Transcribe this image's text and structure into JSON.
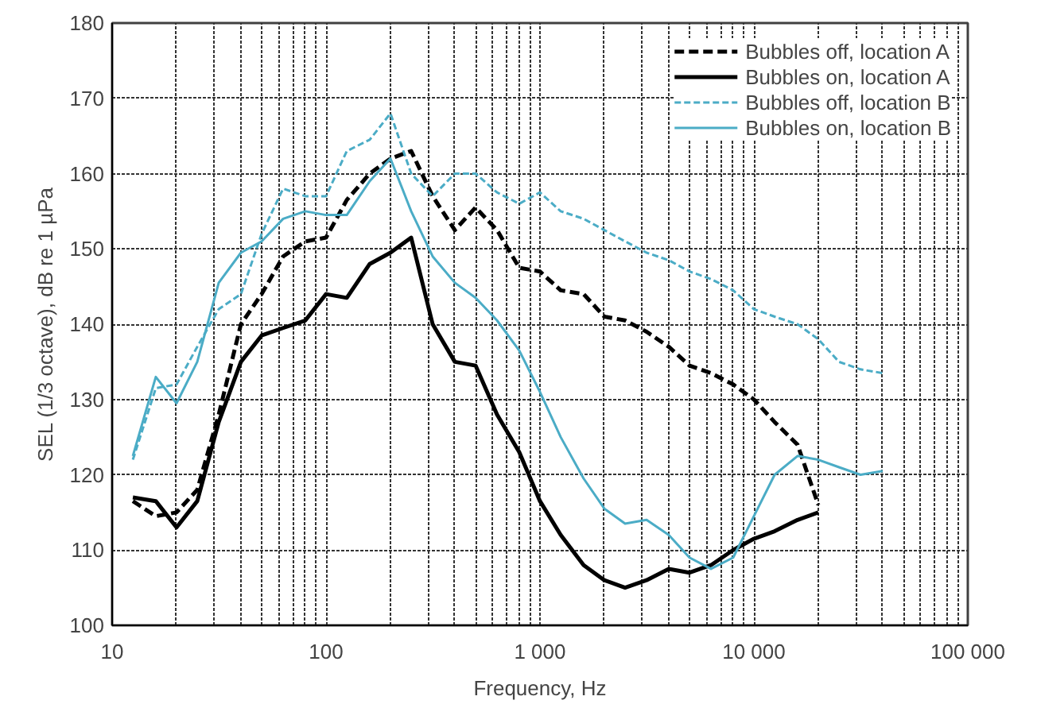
{
  "chart_data": {
    "type": "line",
    "xlabel": "Frequency, Hz",
    "ylabel": "SEL (1/3 octave), dB re 1 µPa",
    "x": [
      12.5,
      16,
      20,
      25,
      31.5,
      40,
      50,
      63,
      80,
      100,
      125,
      160,
      200,
      250,
      315,
      400,
      500,
      630,
      800,
      1000,
      1250,
      1600,
      2000,
      2500,
      3150,
      4000,
      5000,
      6300,
      8000,
      10000,
      12500,
      16000,
      20000,
      25000,
      31500,
      40000
    ],
    "series": [
      {
        "name": "Bubbles off, location A",
        "color": "#000000",
        "line_style": "dashed",
        "values": [
          116.5,
          114.5,
          115,
          118,
          128,
          140,
          144,
          149,
          151,
          151.5,
          156.5,
          160,
          162,
          163,
          157,
          152.5,
          155.5,
          152.5,
          147.5,
          147,
          144.5,
          144,
          141,
          140.5,
          139,
          137,
          134.5,
          133.5,
          132,
          130,
          127,
          124,
          116,
          null,
          null,
          null
        ]
      },
      {
        "name": "Bubbles on, location A",
        "color": "#000000",
        "line_style": "solid",
        "values": [
          117,
          116.5,
          113,
          116.5,
          127,
          135,
          138.5,
          139.5,
          140.5,
          144,
          143.5,
          148,
          149.5,
          151.5,
          140,
          135,
          134.5,
          128,
          123,
          116.5,
          112,
          108,
          106,
          105,
          106,
          107.5,
          107,
          108,
          110,
          111.5,
          112.5,
          114,
          115,
          null,
          null,
          null
        ]
      },
      {
        "name": "Bubbles off, location B",
        "color": "#4bacc6",
        "line_style": "dashed",
        "values": [
          122,
          131.5,
          132,
          137,
          142,
          144,
          152,
          158,
          157,
          157,
          163,
          164.5,
          168,
          160,
          157,
          160,
          160,
          157.5,
          156,
          157.5,
          155,
          154,
          152.5,
          151,
          149.5,
          148.5,
          147,
          146,
          144.5,
          142,
          141,
          140,
          138,
          135,
          134,
          133.5
        ]
      },
      {
        "name": "Bubbles on, location B",
        "color": "#4bacc6",
        "line_style": "solid",
        "values": [
          122.5,
          133,
          129.5,
          135,
          145.5,
          149.5,
          151,
          154,
          155,
          154.5,
          154.5,
          159,
          162,
          155,
          149,
          145.5,
          143.5,
          140.5,
          136.5,
          131,
          125,
          119.5,
          115.5,
          113.5,
          114,
          112,
          109,
          107.5,
          109,
          114.5,
          120,
          122.5,
          122,
          121,
          120,
          120.5
        ]
      }
    ],
    "log": "x",
    "xlim": [
      10,
      100000
    ],
    "xticks": [
      10,
      100,
      {
        "value": 1000,
        "label": "1 000"
      },
      {
        "value": 10000,
        "label": "10 000"
      },
      {
        "value": 100000,
        "label": "100 000"
      }
    ],
    "ylim": [
      100,
      180
    ],
    "yticks": [
      100,
      110,
      120,
      130,
      140,
      150,
      160,
      170,
      180
    ],
    "grid": true,
    "legend": "top right"
  }
}
